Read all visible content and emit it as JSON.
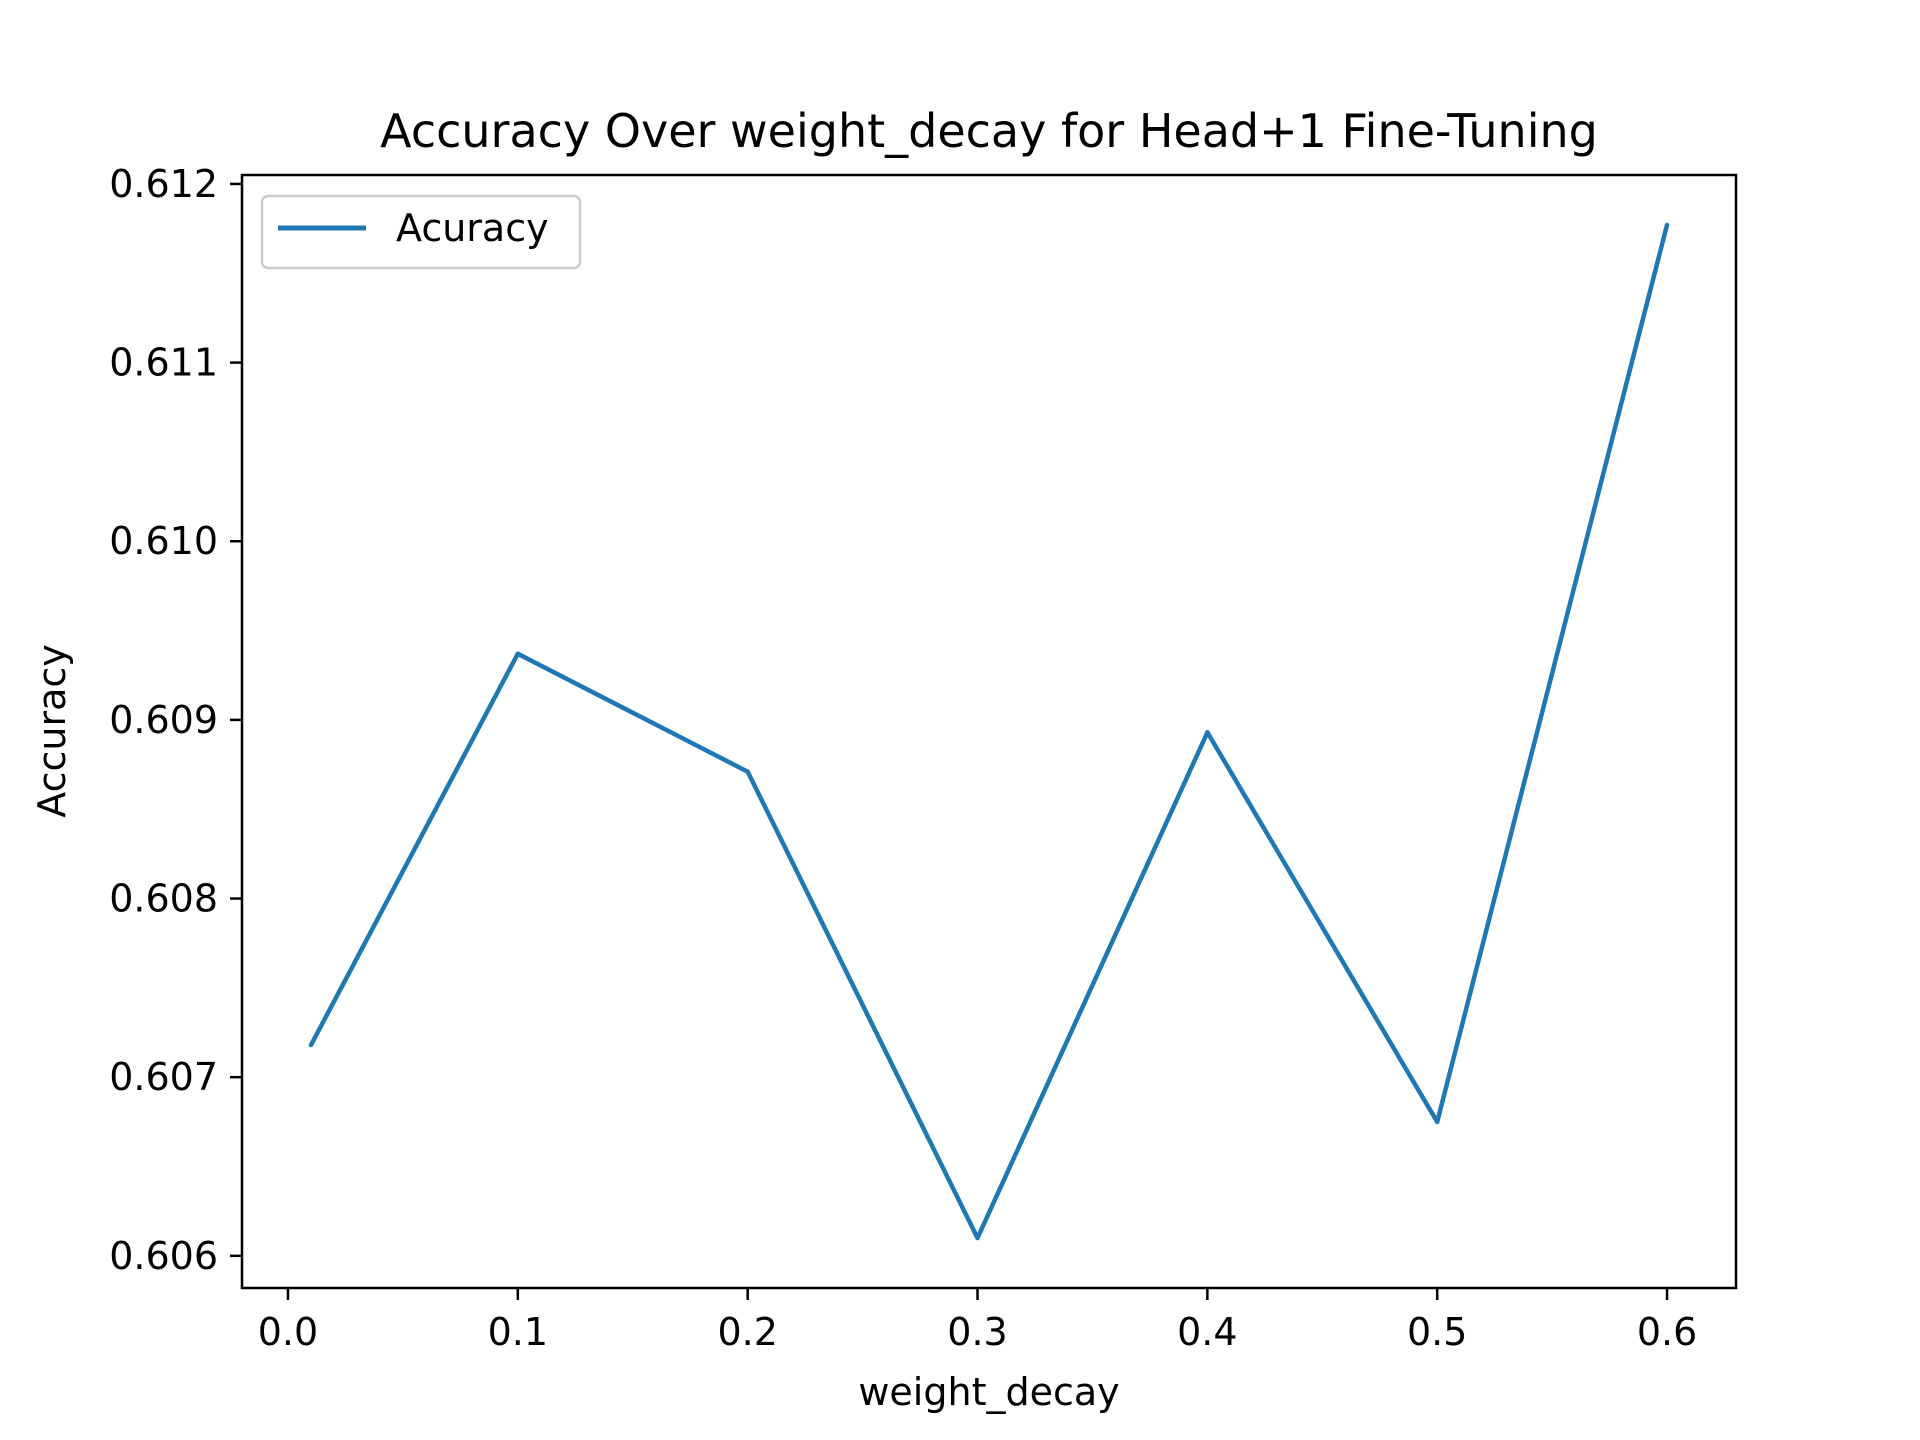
{
  "chart_data": {
    "type": "line",
    "title": "Accuracy Over weight_decay for Head+1 Fine-Tuning",
    "xlabel": "weight_decay",
    "ylabel": "Accuracy",
    "xlim": [
      -0.02,
      0.63
    ],
    "ylim": [
      0.60582,
      0.61205
    ],
    "xticks": [
      0.0,
      0.1,
      0.2,
      0.3,
      0.4,
      0.5,
      0.6
    ],
    "xtick_labels": [
      "0.0",
      "0.1",
      "0.2",
      "0.3",
      "0.4",
      "0.5",
      "0.6"
    ],
    "yticks": [
      0.606,
      0.607,
      0.608,
      0.609,
      0.61,
      0.611,
      0.612
    ],
    "ytick_labels": [
      "0.606",
      "0.607",
      "0.608",
      "0.609",
      "0.610",
      "0.611",
      "0.612"
    ],
    "grid": false,
    "legend_position": "upper-left",
    "series": [
      {
        "name": "Acuracy",
        "color": "#1f77b4",
        "x": [
          0.01,
          0.1,
          0.2,
          0.3,
          0.4,
          0.5,
          0.6
        ],
        "y": [
          0.60718,
          0.60937,
          0.60871,
          0.6061,
          0.60893,
          0.60675,
          0.61177
        ]
      }
    ]
  }
}
